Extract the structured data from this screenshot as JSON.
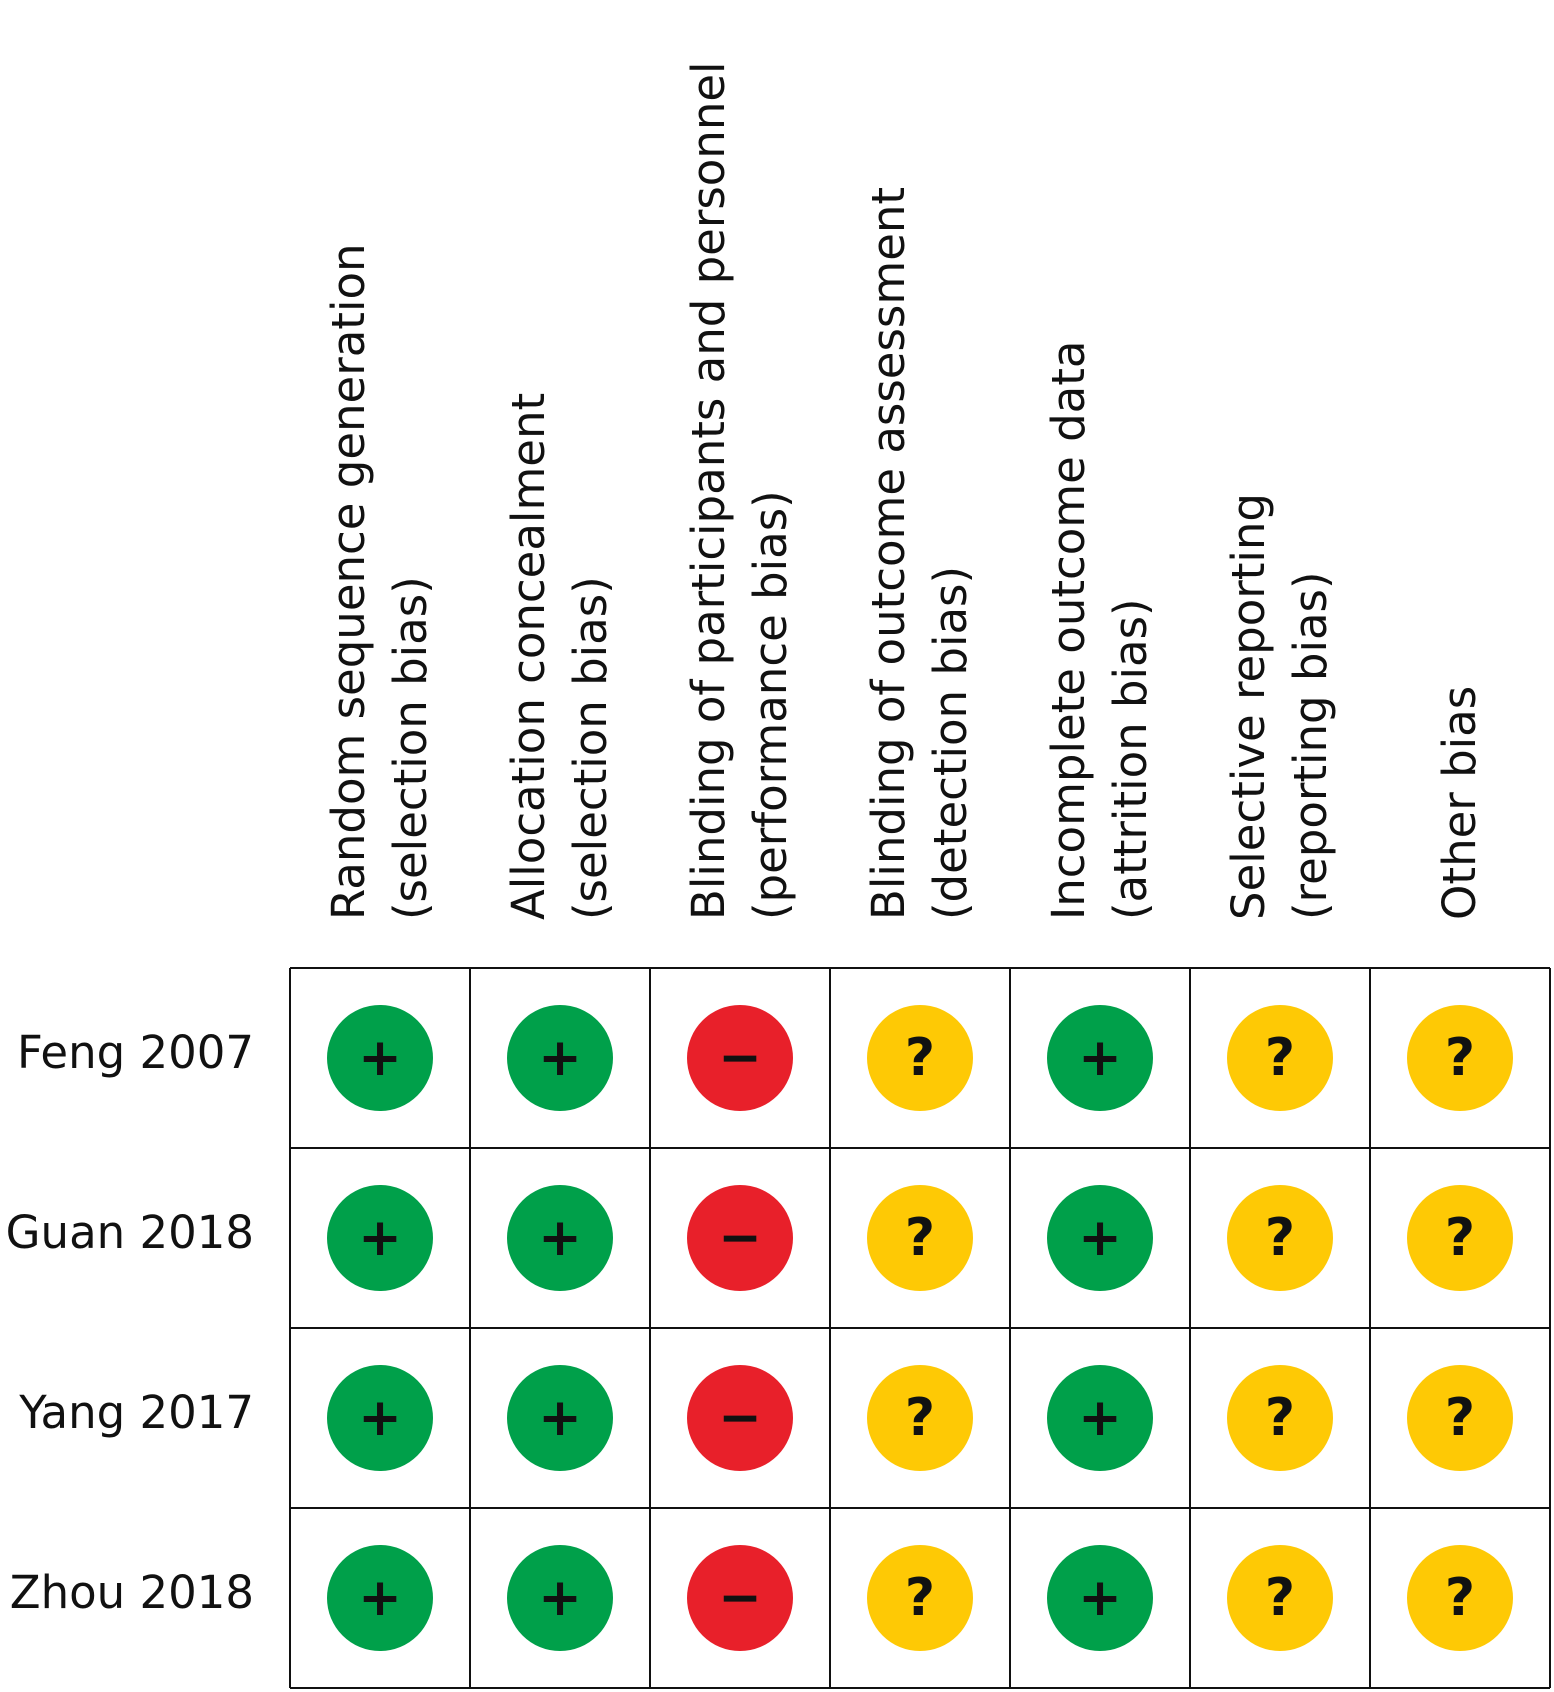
{
  "chart_data": {
    "type": "table",
    "title": "",
    "columns": [
      {
        "line1": "Random sequence generation",
        "line2": "(selection bias)"
      },
      {
        "line1": "Allocation concealment",
        "line2": "(selection bias)"
      },
      {
        "line1": "Blinding of participants and personnel",
        "line2": "(performance bias)"
      },
      {
        "line1": "Blinding of outcome assessment",
        "line2": "(detection bias)"
      },
      {
        "line1": "Incomplete outcome data",
        "line2": "(attrition bias)"
      },
      {
        "line1": "Selective reporting",
        "line2": "(reporting bias)"
      },
      {
        "line1": "Other bias",
        "line2": ""
      }
    ],
    "rows": [
      {
        "study": "Feng 2007",
        "judgements": [
          "+",
          "+",
          "−",
          "?",
          "+",
          "?",
          "?"
        ]
      },
      {
        "study": "Guan 2018",
        "judgements": [
          "+",
          "+",
          "−",
          "?",
          "+",
          "?",
          "?"
        ]
      },
      {
        "study": "Yang 2017",
        "judgements": [
          "+",
          "+",
          "−",
          "?",
          "+",
          "?",
          "?"
        ]
      },
      {
        "study": "Zhou 2018",
        "judgements": [
          "+",
          "+",
          "−",
          "?",
          "+",
          "?",
          "?"
        ]
      }
    ],
    "legend_colors": {
      "+": "#00a04a",
      "−": "#e8202a",
      "?": "#fec905"
    }
  }
}
